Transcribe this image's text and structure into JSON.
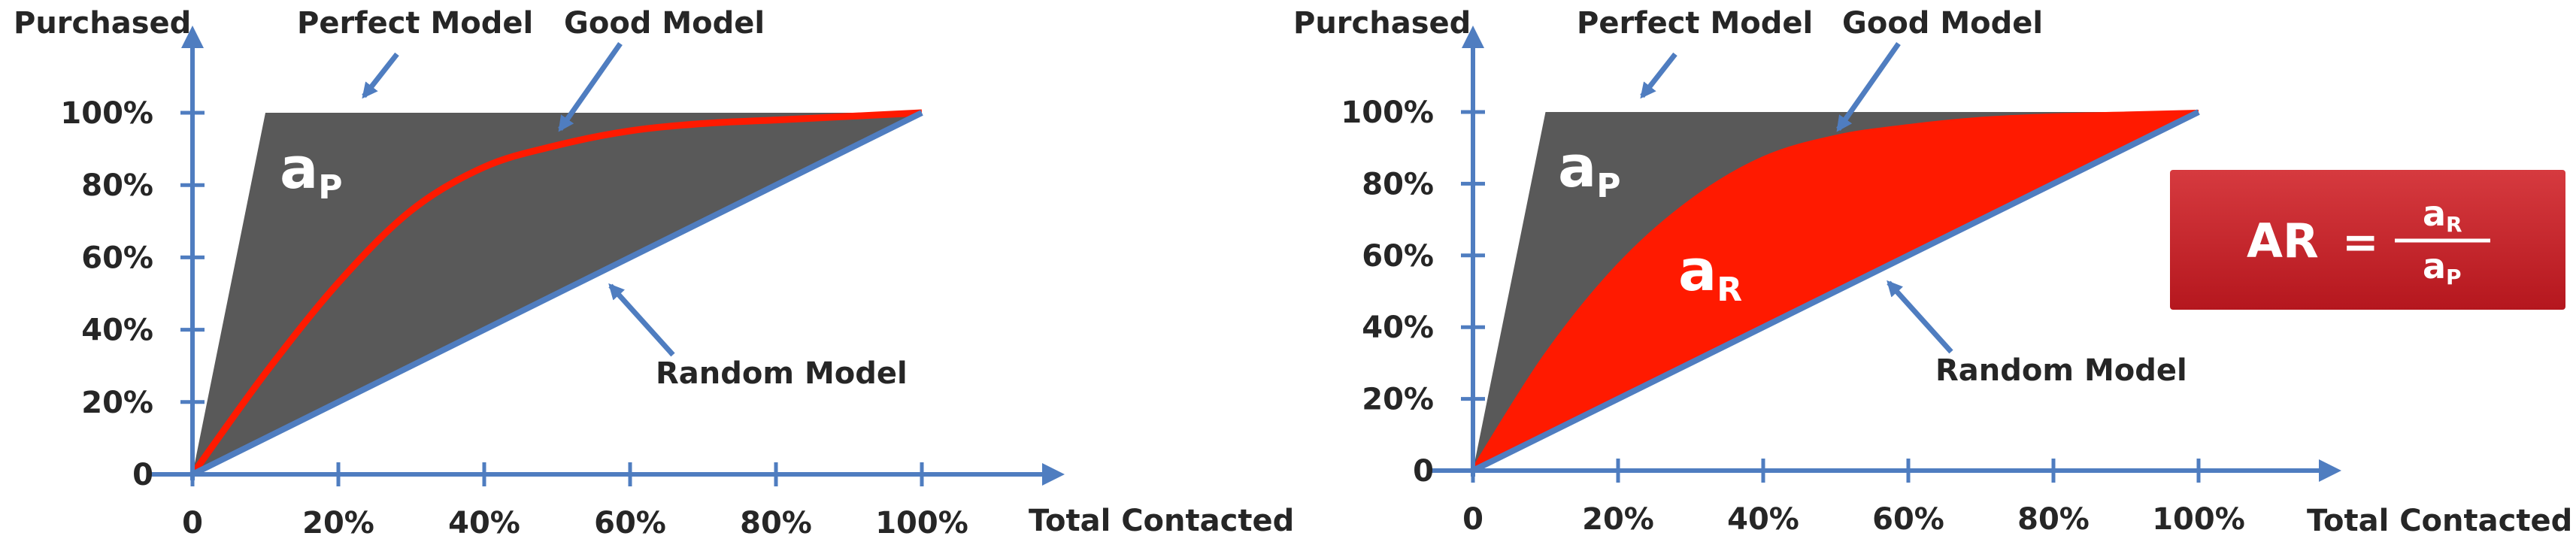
{
  "colors": {
    "axis": "#4F7DC0",
    "perfect_fill": "#595959",
    "good_curve": "#FF1A00",
    "random_line": "#4F7DC0",
    "callout_bg": "#C8222A",
    "text": "#262626"
  },
  "chart_data": [
    {
      "type": "area",
      "title": "",
      "xlabel": "Total Contacted",
      "ylabel": "Purchased",
      "xlim": [
        0,
        100
      ],
      "ylim": [
        0,
        100
      ],
      "x_ticks": [
        "0",
        "20%",
        "40%",
        "60%",
        "80%",
        "100%"
      ],
      "y_ticks": [
        "0",
        "20%",
        "40%",
        "60%",
        "80%",
        "100%"
      ],
      "series": [
        {
          "name": "Perfect Model",
          "x": [
            0,
            10,
            100
          ],
          "y": [
            0,
            100,
            100
          ]
        },
        {
          "name": "Good Model",
          "x": [
            0,
            10,
            20,
            30,
            40,
            50,
            60,
            70,
            80,
            90,
            100
          ],
          "y": [
            0,
            28,
            53,
            73,
            85,
            91,
            95,
            97,
            98,
            99,
            100
          ]
        },
        {
          "name": "Random Model",
          "x": [
            0,
            100
          ],
          "y": [
            0,
            100
          ]
        }
      ],
      "annotations": [
        "Perfect Model",
        "Good Model",
        "Random Model"
      ],
      "area_labels": [
        {
          "symbol": "a",
          "subscript": "P"
        }
      ]
    },
    {
      "type": "area",
      "title": "",
      "xlabel": "Total Contacted",
      "ylabel": "Purchased",
      "xlim": [
        0,
        100
      ],
      "ylim": [
        0,
        100
      ],
      "x_ticks": [
        "0",
        "20%",
        "40%",
        "60%",
        "80%",
        "100%"
      ],
      "y_ticks": [
        "0",
        "20%",
        "40%",
        "60%",
        "80%",
        "100%"
      ],
      "series": [
        {
          "name": "Perfect Model",
          "x": [
            0,
            10,
            100
          ],
          "y": [
            0,
            100,
            100
          ]
        },
        {
          "name": "Good Model",
          "x": [
            0,
            10,
            20,
            30,
            40,
            50,
            60,
            70,
            80,
            90,
            100
          ],
          "y": [
            0,
            32,
            57,
            75,
            87,
            93,
            96,
            98,
            99,
            99.5,
            100
          ]
        },
        {
          "name": "Random Model",
          "x": [
            0,
            100
          ],
          "y": [
            0,
            100
          ]
        }
      ],
      "annotations": [
        "Perfect Model",
        "Good Model",
        "Random Model"
      ],
      "area_labels": [
        {
          "symbol": "a",
          "subscript": "P"
        },
        {
          "symbol": "a",
          "subscript": "R"
        }
      ],
      "formula": {
        "lhs": "AR",
        "equals": "=",
        "numerator": "a",
        "numerator_sub": "R",
        "denominator": "a",
        "denominator_sub": "P"
      }
    }
  ]
}
